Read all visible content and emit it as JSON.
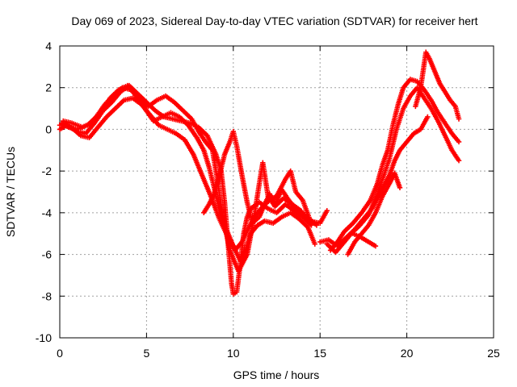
{
  "chart_data": {
    "type": "scatter",
    "title": "Day 069 of 2023, Sidereal Day-to-day VTEC variation (SDTVAR) for receiver hert",
    "xlabel": "GPS time / hours",
    "ylabel": "SDTVAR / TECUs",
    "xlim": [
      0,
      25
    ],
    "ylim": [
      -10,
      4
    ],
    "xticks": [
      0,
      5,
      10,
      15,
      20,
      25
    ],
    "yticks": [
      -10,
      -8,
      -6,
      -4,
      -2,
      0,
      2,
      4
    ],
    "grid": true,
    "marker": "+",
    "color": "#ff0000",
    "series": [
      {
        "points": [
          [
            0.0,
            0.2
          ],
          [
            0.3,
            0.3
          ],
          [
            0.6,
            0.1
          ],
          [
            1.0,
            -0.1
          ],
          [
            1.5,
            -0.2
          ],
          [
            2.0,
            0.3
          ],
          [
            2.5,
            0.9
          ],
          [
            3.0,
            1.3
          ],
          [
            3.5,
            1.8
          ],
          [
            4.0,
            2.1
          ],
          [
            4.5,
            1.7
          ],
          [
            5.0,
            1.3
          ],
          [
            5.5,
            0.9
          ],
          [
            6.0,
            0.6
          ],
          [
            6.5,
            0.5
          ],
          [
            7.0,
            0.4
          ],
          [
            7.5,
            0.3
          ],
          [
            8.0,
            0.1
          ],
          [
            8.5,
            -0.3
          ],
          [
            9.0,
            -1.2
          ],
          [
            9.3,
            -2.0
          ],
          [
            9.5,
            -3.5
          ],
          [
            9.7,
            -5.5
          ],
          [
            9.9,
            -7.4
          ],
          [
            10.0,
            -7.9
          ],
          [
            10.2,
            -7.8
          ],
          [
            10.4,
            -6.5
          ],
          [
            10.6,
            -5.0
          ],
          [
            10.8,
            -4.2
          ],
          [
            11.0,
            -3.8
          ],
          [
            11.5,
            -3.5
          ],
          [
            12.0,
            -3.8
          ],
          [
            12.5,
            -4.0
          ],
          [
            13.0,
            -3.6
          ],
          [
            13.5,
            -3.9
          ],
          [
            14.0,
            -4.2
          ],
          [
            14.5,
            -4.6
          ]
        ]
      },
      {
        "points": [
          [
            0.0,
            0.0
          ],
          [
            0.4,
            0.2
          ],
          [
            0.8,
            0.0
          ],
          [
            1.2,
            -0.3
          ],
          [
            1.7,
            -0.4
          ],
          [
            2.2,
            0.1
          ],
          [
            2.7,
            0.6
          ],
          [
            3.2,
            1.0
          ],
          [
            3.7,
            1.4
          ],
          [
            4.2,
            1.5
          ],
          [
            4.7,
            1.2
          ],
          [
            5.2,
            0.7
          ],
          [
            5.7,
            0.2
          ],
          [
            6.2,
            0.0
          ],
          [
            6.7,
            -0.2
          ],
          [
            7.2,
            -0.5
          ],
          [
            7.7,
            -1.2
          ],
          [
            8.2,
            -2.2
          ],
          [
            8.7,
            -3.2
          ],
          [
            9.2,
            -4.3
          ],
          [
            9.6,
            -5.0
          ],
          [
            10.0,
            -5.6
          ],
          [
            10.4,
            -6.3
          ],
          [
            10.7,
            -5.8
          ],
          [
            11.0,
            -5.0
          ],
          [
            11.4,
            -4.6
          ],
          [
            11.8,
            -4.4
          ],
          [
            12.3,
            -4.5
          ],
          [
            12.8,
            -4.2
          ],
          [
            13.3,
            -4.0
          ],
          [
            13.8,
            -4.3
          ],
          [
            14.3,
            -4.7
          ],
          [
            14.7,
            -5.5
          ]
        ]
      },
      {
        "points": [
          [
            0.1,
            0.3
          ],
          [
            0.5,
            0.1
          ],
          [
            1.0,
            0.0
          ],
          [
            1.6,
            0.2
          ],
          [
            2.1,
            0.6
          ],
          [
            2.6,
            1.2
          ],
          [
            3.1,
            1.6
          ],
          [
            3.6,
            2.0
          ],
          [
            4.1,
            1.9
          ],
          [
            4.6,
            1.5
          ],
          [
            5.1,
            1.1
          ],
          [
            5.6,
            1.4
          ],
          [
            6.1,
            1.6
          ],
          [
            6.6,
            1.3
          ],
          [
            7.1,
            0.9
          ],
          [
            7.6,
            0.5
          ],
          [
            8.0,
            -0.1
          ],
          [
            8.4,
            -0.6
          ],
          [
            8.8,
            -1.0
          ],
          [
            9.1,
            -2.5
          ],
          [
            9.4,
            -4.2
          ],
          [
            9.8,
            -5.8
          ],
          [
            10.3,
            -6.8
          ],
          [
            10.8,
            -6.0
          ],
          [
            11.2,
            -4.2
          ],
          [
            11.5,
            -2.6
          ],
          [
            11.7,
            -1.6
          ],
          [
            12.0,
            -3.2
          ],
          [
            12.4,
            -3.7
          ],
          [
            12.9,
            -3.3
          ],
          [
            13.4,
            -3.6
          ],
          [
            13.9,
            -3.9
          ]
        ]
      },
      {
        "points": [
          [
            0.2,
            0.4
          ],
          [
            0.7,
            0.3
          ],
          [
            1.3,
            0.1
          ],
          [
            1.8,
            0.3
          ],
          [
            2.4,
            0.9
          ],
          [
            2.9,
            1.5
          ],
          [
            3.4,
            1.9
          ],
          [
            3.9,
            2.1
          ],
          [
            4.4,
            1.6
          ],
          [
            4.9,
            1.0
          ],
          [
            5.4,
            0.4
          ],
          [
            5.9,
            0.6
          ],
          [
            6.4,
            0.8
          ],
          [
            6.9,
            0.6
          ],
          [
            7.4,
            0.2
          ],
          [
            7.9,
            -0.4
          ],
          [
            8.3,
            -1.0
          ],
          [
            8.6,
            -1.8
          ],
          [
            8.9,
            -2.8
          ],
          [
            9.2,
            -3.9
          ],
          [
            9.5,
            -4.6
          ],
          [
            9.8,
            -5.2
          ],
          [
            10.1,
            -5.8
          ],
          [
            10.5,
            -5.4
          ],
          [
            10.9,
            -4.7
          ],
          [
            11.3,
            -4.1
          ],
          [
            11.7,
            -3.7
          ],
          [
            12.1,
            -3.4
          ],
          [
            12.5,
            -3.2
          ],
          [
            13.0,
            -2.4
          ],
          [
            13.3,
            -2.0
          ],
          [
            13.6,
            -3.0
          ],
          [
            14.0,
            -3.4
          ],
          [
            14.4,
            -4.3
          ],
          [
            14.8,
            -4.6
          ]
        ]
      },
      {
        "points": [
          [
            8.3,
            -4.0
          ],
          [
            8.6,
            -3.6
          ],
          [
            8.9,
            -3.1
          ],
          [
            9.2,
            -2.2
          ],
          [
            9.5,
            -1.2
          ],
          [
            9.8,
            -0.6
          ],
          [
            10.0,
            -0.1
          ],
          [
            10.2,
            -0.8
          ],
          [
            10.5,
            -2.2
          ],
          [
            10.8,
            -3.5
          ],
          [
            11.1,
            -4.5
          ],
          [
            11.5,
            -4.2
          ],
          [
            11.8,
            -3.6
          ],
          [
            12.1,
            -3.1
          ],
          [
            12.4,
            -3.6
          ],
          [
            12.8,
            -2.9
          ],
          [
            13.2,
            -3.4
          ],
          [
            13.6,
            -3.8
          ],
          [
            14.0,
            -4.0
          ],
          [
            14.4,
            -4.4
          ],
          [
            15.0,
            -4.5
          ],
          [
            15.4,
            -3.9
          ]
        ]
      },
      {
        "points": [
          [
            15.0,
            -5.4
          ],
          [
            15.5,
            -5.3
          ],
          [
            16.0,
            -5.6
          ],
          [
            16.5,
            -5.2
          ],
          [
            17.0,
            -4.8
          ],
          [
            17.5,
            -4.3
          ],
          [
            18.0,
            -3.8
          ],
          [
            18.5,
            -3.0
          ],
          [
            19.0,
            -2.2
          ],
          [
            19.3,
            -1.5
          ],
          [
            19.6,
            -1.0
          ],
          [
            20.0,
            -0.6
          ],
          [
            20.4,
            -0.2
          ],
          [
            20.8,
            0.0
          ],
          [
            21.2,
            0.6
          ]
        ]
      },
      {
        "points": [
          [
            15.4,
            -5.5
          ],
          [
            15.9,
            -5.9
          ],
          [
            16.3,
            -5.5
          ],
          [
            16.8,
            -5.0
          ],
          [
            17.3,
            -4.6
          ],
          [
            17.8,
            -4.1
          ],
          [
            18.2,
            -3.3
          ],
          [
            18.6,
            -2.4
          ],
          [
            19.0,
            -1.4
          ],
          [
            19.4,
            0.0
          ],
          [
            19.8,
            1.0
          ],
          [
            20.2,
            1.6
          ],
          [
            20.6,
            2.0
          ],
          [
            21.0,
            1.5
          ],
          [
            21.4,
            1.0
          ],
          [
            21.8,
            0.4
          ],
          [
            22.2,
            -0.3
          ],
          [
            22.6,
            -1.0
          ],
          [
            23.0,
            -1.5
          ]
        ]
      },
      {
        "points": [
          [
            15.6,
            -5.8
          ],
          [
            16.0,
            -5.4
          ],
          [
            16.4,
            -4.9
          ],
          [
            16.9,
            -4.5
          ],
          [
            17.4,
            -4.0
          ],
          [
            17.9,
            -3.4
          ],
          [
            18.3,
            -2.6
          ],
          [
            18.6,
            -1.7
          ],
          [
            18.9,
            -1.0
          ],
          [
            19.2,
            0.2
          ],
          [
            19.5,
            1.2
          ],
          [
            19.8,
            2.0
          ],
          [
            20.2,
            2.4
          ],
          [
            20.6,
            2.3
          ],
          [
            21.0,
            1.9
          ],
          [
            21.4,
            1.4
          ],
          [
            21.8,
            0.8
          ],
          [
            22.2,
            0.3
          ],
          [
            22.6,
            -0.2
          ],
          [
            23.0,
            -0.6
          ]
        ]
      },
      {
        "points": [
          [
            16.6,
            -6.0
          ],
          [
            17.0,
            -5.4
          ],
          [
            17.4,
            -5.0
          ],
          [
            17.8,
            -4.6
          ],
          [
            18.2,
            -4.0
          ],
          [
            18.6,
            -3.2
          ],
          [
            19.0,
            -2.6
          ],
          [
            19.3,
            -2.1
          ],
          [
            19.6,
            -2.8
          ]
        ]
      },
      {
        "points": [
          [
            16.9,
            -5.0
          ],
          [
            17.4,
            -5.2
          ],
          [
            17.8,
            -5.4
          ],
          [
            18.2,
            -5.6
          ]
        ]
      },
      {
        "points": [
          [
            20.5,
            1.1
          ],
          [
            20.8,
            2.0
          ],
          [
            21.1,
            3.7
          ],
          [
            21.3,
            3.4
          ],
          [
            21.6,
            2.8
          ],
          [
            21.9,
            2.2
          ],
          [
            22.2,
            1.8
          ],
          [
            22.5,
            1.4
          ],
          [
            22.8,
            1.1
          ],
          [
            23.0,
            0.5
          ]
        ]
      }
    ]
  }
}
